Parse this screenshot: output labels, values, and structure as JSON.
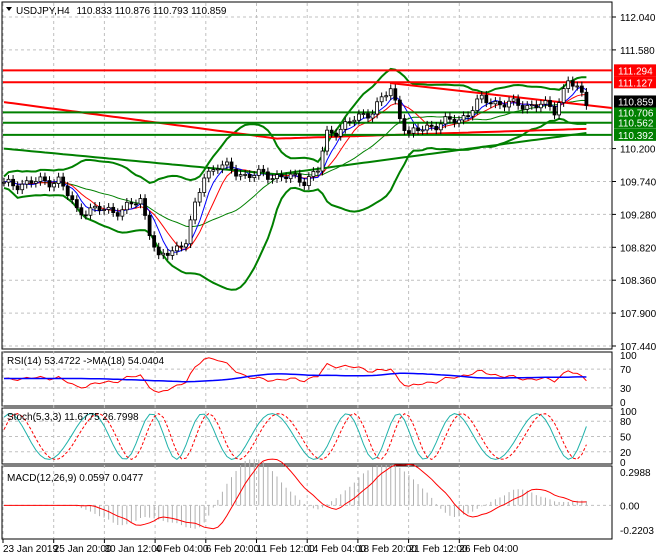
{
  "chart_data": {
    "type": "candlestick",
    "title": "USDJPY,H4",
    "ohlc": "110.833 110.876 110.793 110.859",
    "price_ticks": [
      "112.040",
      "111.580",
      "110.200",
      "109.740",
      "109.280",
      "108.820",
      "108.360",
      "107.900",
      "107.440"
    ],
    "ylim": [
      107.44,
      112.04
    ],
    "close_keypoints": [
      [
        0,
        109.69
      ],
      [
        12,
        109.76
      ],
      [
        16,
        109.34
      ],
      [
        26,
        109.34
      ],
      [
        30,
        109.48
      ],
      [
        34,
        108.64
      ],
      [
        40,
        108.92
      ],
      [
        44,
        109.83
      ],
      [
        47,
        109.97
      ],
      [
        53,
        109.83
      ],
      [
        59,
        109.83
      ],
      [
        66,
        109.76
      ],
      [
        69,
        109.9
      ],
      [
        71,
        110.39
      ],
      [
        75,
        110.53
      ],
      [
        81,
        110.74
      ],
      [
        85,
        111.02
      ],
      [
        87,
        110.67
      ],
      [
        89,
        110.39
      ],
      [
        94,
        110.53
      ],
      [
        100,
        110.6
      ],
      [
        105,
        110.88
      ],
      [
        112,
        110.81
      ],
      [
        118,
        110.81
      ],
      [
        121,
        110.74
      ],
      [
        124,
        111.16
      ],
      [
        128,
        110.86
      ]
    ],
    "price_lines": [
      {
        "label": "111.294",
        "value": 111.294,
        "color": "#ff0000"
      },
      {
        "label": "111.127",
        "value": 111.127,
        "color": "#ff0000"
      },
      {
        "label": "110.706",
        "value": 110.706,
        "color": "#008000"
      },
      {
        "label": "110.562",
        "value": 110.562,
        "color": "#008000"
      },
      {
        "label": "110.392",
        "value": 110.392,
        "color": "#008000"
      }
    ],
    "current_price": "110.859",
    "x_labels": [
      "23 Jan 2019",
      "25 Jan 20:00",
      "30 Jan 12:00",
      "4 Feb 04:00",
      "6 Feb 20:00",
      "11 Feb 12:00",
      "14 Feb 04:00",
      "18 Feb 20:00",
      "21 Feb 12:00",
      "26 Feb 04:00"
    ],
    "rsi": {
      "label": "RSI(14) 53.4722  ->MA(18) 54.0404",
      "ticks": [
        "100",
        "70",
        "30",
        "0"
      ]
    },
    "stoch": {
      "label": "Stoch(5,3,3) 11.6775 26.7998",
      "ticks": [
        "100",
        "80",
        "50",
        "20",
        "0"
      ]
    },
    "macd": {
      "label": "MACD(12,26,9) 0.0597 0.0477",
      "ticks": [
        "0.2988",
        "0.00",
        "-0.2203"
      ]
    },
    "colors": {
      "up": "#000000",
      "down": "#000000",
      "bands": "#008000",
      "signal": "#ff0000",
      "ma": "#0000ff",
      "stoch_main": "#20b2aa"
    }
  }
}
